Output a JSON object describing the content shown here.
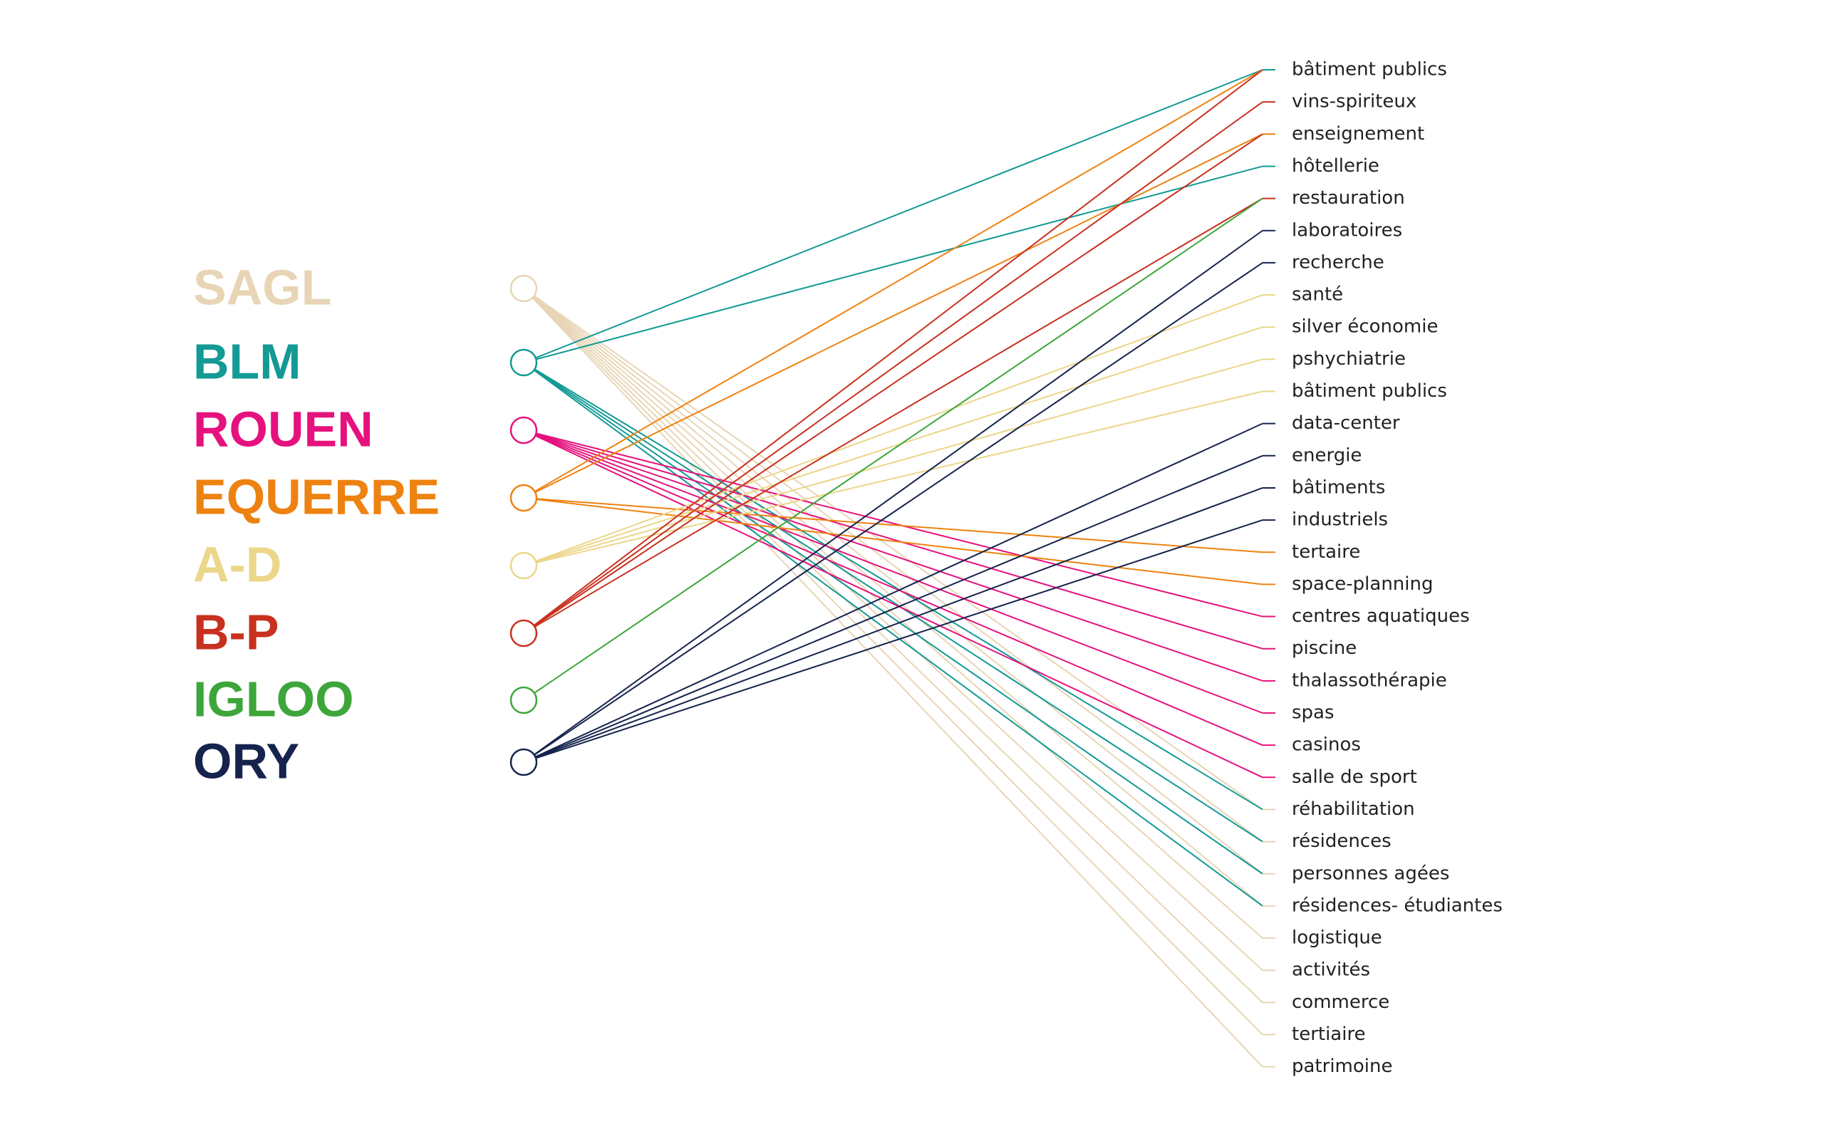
{
  "companies": [
    {
      "label": "SAGL",
      "color": "#e8d5b5"
    },
    {
      "label": "BLM",
      "color": "#139a94"
    },
    {
      "label": "ROUEN",
      "color": "#e5127d"
    },
    {
      "label": "EQUERRE",
      "color": "#ee8211"
    },
    {
      "label": "A-D",
      "color": "#ecd68a"
    },
    {
      "label": "B-P",
      "color": "#c8301f"
    },
    {
      "label": "IGLOO",
      "color": "#3da63a"
    },
    {
      "label": "ORY",
      "color": "#15234d"
    }
  ],
  "targets": [
    "bâtiment publics",
    "vins-spiriteux",
    "enseignement",
    "hôtellerie",
    "restauration",
    "laboratoires",
    "recherche",
    "santé",
    "silver économie",
    "pshychiatrie",
    "bâtiment publics",
    "data-center",
    "energie",
    "bâtiments",
    "industriels",
    "tertaire",
    "space-planning",
    "centres aquatiques",
    "piscine",
    "thalassothérapie",
    "spas",
    "casinos",
    "salle de sport",
    "réhabilitation",
    "résidences",
    "personnes agées",
    "résidences- étudiantes",
    "logistique",
    "activités",
    "commerce",
    "tertiaire",
    "patrimoine"
  ]
}
